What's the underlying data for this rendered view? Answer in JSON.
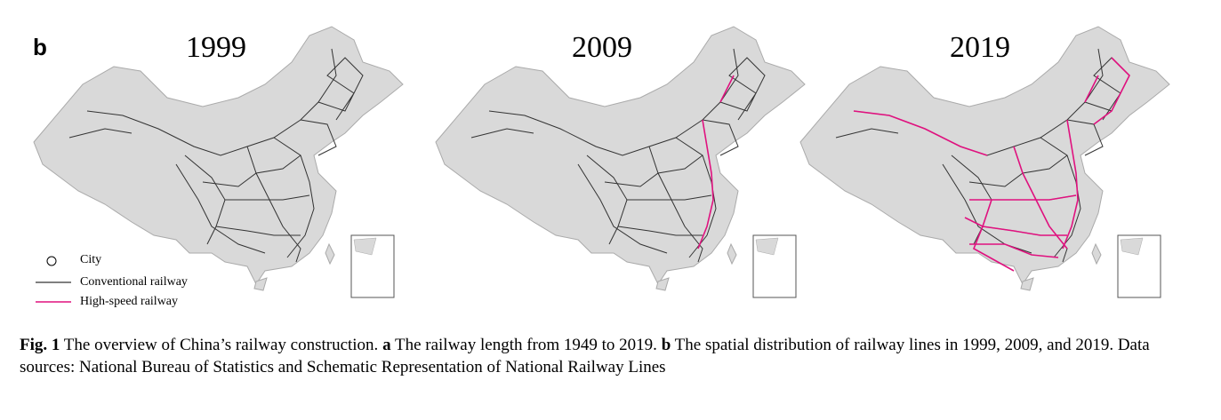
{
  "panel_label": "b",
  "maps": [
    {
      "year": "1999"
    },
    {
      "year": "2009"
    },
    {
      "year": "2019"
    }
  ],
  "legend": [
    {
      "label": "City"
    },
    {
      "label": "Conventional railway"
    },
    {
      "label": "High-speed railway"
    }
  ],
  "caption": {
    "label": "Fig. 1",
    "text1": " The overview of China’s railway construction. ",
    "part_a": "a",
    "text2": " The railway length from 1949 to 2019. ",
    "part_b": "b",
    "text3": " The spatial distribution of railway lines in 1999, 2009, and 2019. Data sources: National Bureau of Statistics and Schematic Representation of National Railway Lines"
  }
}
